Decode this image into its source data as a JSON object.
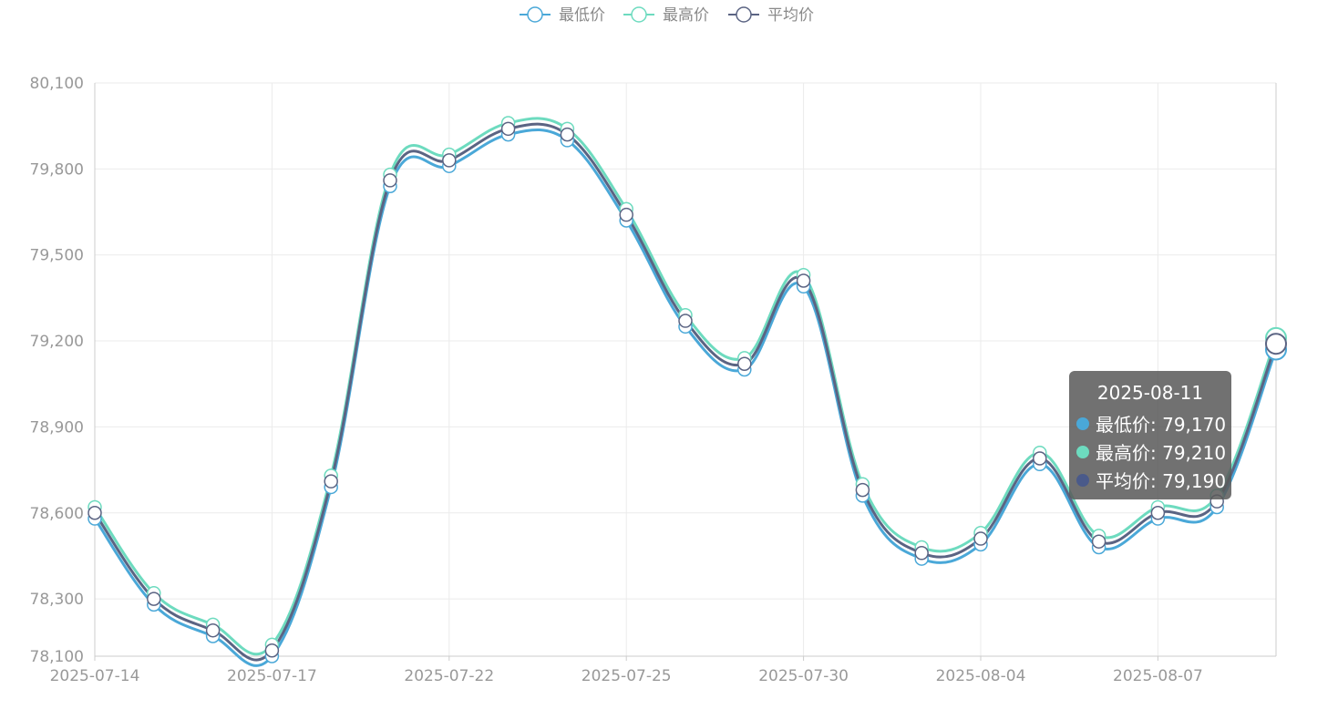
{
  "chart_data": {
    "type": "line",
    "legend_position": "top-center",
    "grid": true,
    "smooth": true,
    "x": [
      "2025-07-14",
      "2025-07-15",
      "2025-07-16",
      "2025-07-17",
      "2025-07-18",
      "2025-07-21",
      "2025-07-22",
      "2025-07-23",
      "2025-07-24",
      "2025-07-25",
      "2025-07-28",
      "2025-07-29",
      "2025-07-30",
      "2025-07-31",
      "2025-08-01",
      "2025-08-04",
      "2025-08-05",
      "2025-08-06",
      "2025-08-07",
      "2025-08-08",
      "2025-08-11"
    ],
    "x_tick_labels": [
      "2025-07-14",
      "2025-07-17",
      "2025-07-22",
      "2025-07-25",
      "2025-07-30",
      "2025-08-04",
      "2025-08-07"
    ],
    "y_ticks": [
      "80,100",
      "79,800",
      "79,500",
      "79,200",
      "78,900",
      "78,600",
      "78,300",
      "78,100"
    ],
    "ylim": [
      78100,
      80100
    ],
    "series": [
      {
        "name": "最低价",
        "color": "#4aa8d8",
        "values": [
          78580,
          78280,
          78170,
          78100,
          78690,
          79740,
          79810,
          79920,
          79900,
          79620,
          79250,
          79100,
          79390,
          78660,
          78440,
          78490,
          78770,
          78480,
          78580,
          78620,
          79170
        ]
      },
      {
        "name": "最高价",
        "color": "#6ddbbf",
        "values": [
          78620,
          78320,
          78210,
          78140,
          78730,
          79780,
          79850,
          79960,
          79940,
          79660,
          79290,
          79140,
          79430,
          78700,
          78480,
          78530,
          78810,
          78520,
          78620,
          78660,
          79210
        ]
      },
      {
        "name": "平均价",
        "color": "#5b6483",
        "values": [
          78600,
          78300,
          78190,
          78120,
          78710,
          79760,
          79830,
          79940,
          79920,
          79640,
          79270,
          79120,
          79410,
          78680,
          78460,
          78510,
          78790,
          78500,
          78600,
          78640,
          79190
        ]
      }
    ]
  },
  "tooltip": {
    "title": "2025-08-11",
    "rows": [
      {
        "text": "最低价: 79,170",
        "color": "#4aa8d8"
      },
      {
        "text": "最高价: 79,210",
        "color": "#6ddbbf"
      },
      {
        "text": "平均价: 79,190",
        "color": "#4a5a8a"
      }
    ]
  }
}
